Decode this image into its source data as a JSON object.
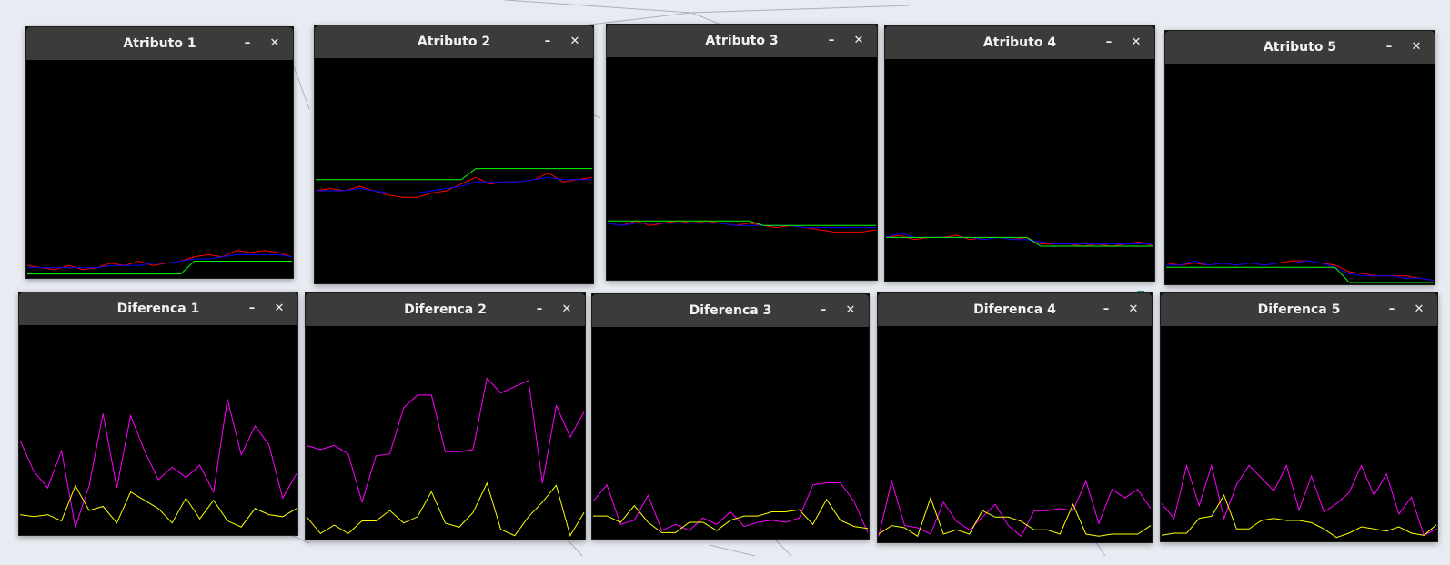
{
  "windows": [
    {
      "title": "Atributo 1",
      "minimize_label": "–",
      "close_label": "✕",
      "chart_data": {
        "type": "line",
        "x": [
          0,
          1,
          2,
          3,
          4,
          5,
          6,
          7,
          8,
          9,
          10,
          11,
          12,
          13,
          14,
          15,
          16,
          17,
          18,
          19
        ],
        "ylim": [
          0,
          1
        ],
        "series": [
          {
            "color": "#ff0000",
            "values": [
              0.05,
              0.04,
              0.03,
              0.05,
              0.03,
              0.04,
              0.06,
              0.05,
              0.07,
              0.05,
              0.06,
              0.07,
              0.09,
              0.1,
              0.09,
              0.12,
              0.11,
              0.12,
              0.11,
              0.09
            ]
          },
          {
            "color": "#0000ff",
            "values": [
              0.04,
              0.04,
              0.04,
              0.04,
              0.04,
              0.04,
              0.05,
              0.05,
              0.05,
              0.06,
              0.06,
              0.07,
              0.08,
              0.08,
              0.09,
              0.1,
              0.1,
              0.1,
              0.1,
              0.09
            ]
          },
          {
            "color": "#00ff00",
            "values": [
              0.01,
              0.01,
              0.01,
              0.01,
              0.01,
              0.01,
              0.01,
              0.01,
              0.01,
              0.01,
              0.01,
              0.01,
              0.07,
              0.07,
              0.07,
              0.07,
              0.07,
              0.07,
              0.07,
              0.07
            ]
          }
        ]
      }
    },
    {
      "title": "Atributo 2",
      "minimize_label": "–",
      "close_label": "✕",
      "chart_data": {
        "type": "line",
        "x": [
          0,
          1,
          2,
          3,
          4,
          5,
          6,
          7,
          8,
          9,
          10,
          11,
          12,
          13,
          14,
          15,
          16,
          17,
          18,
          19
        ],
        "ylim": [
          0,
          1
        ],
        "series": [
          {
            "color": "#ff0000",
            "values": [
              0.41,
              0.42,
              0.41,
              0.43,
              0.41,
              0.39,
              0.38,
              0.38,
              0.4,
              0.41,
              0.44,
              0.47,
              0.44,
              0.45,
              0.45,
              0.46,
              0.49,
              0.45,
              0.46,
              0.47
            ]
          },
          {
            "color": "#0000ff",
            "values": [
              0.41,
              0.41,
              0.41,
              0.42,
              0.41,
              0.4,
              0.4,
              0.4,
              0.41,
              0.42,
              0.43,
              0.45,
              0.45,
              0.45,
              0.45,
              0.46,
              0.47,
              0.46,
              0.46,
              0.46
            ]
          },
          {
            "color": "#00ff00",
            "values": [
              0.46,
              0.46,
              0.46,
              0.46,
              0.46,
              0.46,
              0.46,
              0.46,
              0.46,
              0.46,
              0.46,
              0.51,
              0.51,
              0.51,
              0.51,
              0.51,
              0.51,
              0.51,
              0.51,
              0.51
            ]
          }
        ]
      }
    },
    {
      "title": "Atributo 3",
      "minimize_label": "–",
      "close_label": "✕",
      "chart_data": {
        "type": "line",
        "x": [
          0,
          1,
          2,
          3,
          4,
          5,
          6,
          7,
          8,
          9,
          10,
          11,
          12,
          13,
          14,
          15,
          16,
          17,
          18,
          19
        ],
        "ylim": [
          0,
          1
        ],
        "series": [
          {
            "color": "#ff0000",
            "values": [
              0.25,
              0.24,
              0.26,
              0.24,
              0.25,
              0.26,
              0.25,
              0.26,
              0.25,
              0.24,
              0.25,
              0.24,
              0.23,
              0.24,
              0.23,
              0.22,
              0.21,
              0.21,
              0.21,
              0.22
            ]
          },
          {
            "color": "#0000ff",
            "values": [
              0.25,
              0.24,
              0.25,
              0.25,
              0.25,
              0.25,
              0.25,
              0.25,
              0.25,
              0.24,
              0.24,
              0.24,
              0.24,
              0.24,
              0.23,
              0.23,
              0.23,
              0.23,
              0.23,
              0.23
            ]
          },
          {
            "color": "#00ff00",
            "values": [
              0.26,
              0.26,
              0.26,
              0.26,
              0.26,
              0.26,
              0.26,
              0.26,
              0.26,
              0.26,
              0.26,
              0.24,
              0.24,
              0.24,
              0.24,
              0.24,
              0.24,
              0.24,
              0.24,
              0.24
            ]
          }
        ]
      }
    },
    {
      "title": "Atributo 4",
      "minimize_label": "–",
      "close_label": "✕",
      "chart_data": {
        "type": "line",
        "x": [
          0,
          1,
          2,
          3,
          4,
          5,
          6,
          7,
          8,
          9,
          10,
          11,
          12,
          13,
          14,
          15,
          16,
          17,
          18,
          19
        ],
        "ylim": [
          0,
          1
        ],
        "series": [
          {
            "color": "#ff0000",
            "values": [
              0.19,
              0.2,
              0.18,
              0.19,
              0.19,
              0.2,
              0.18,
              0.19,
              0.19,
              0.18,
              0.19,
              0.16,
              0.16,
              0.16,
              0.15,
              0.16,
              0.15,
              0.16,
              0.17,
              0.15
            ]
          },
          {
            "color": "#0000ff",
            "values": [
              0.19,
              0.21,
              0.19,
              0.19,
              0.19,
              0.19,
              0.19,
              0.18,
              0.19,
              0.18,
              0.18,
              0.17,
              0.16,
              0.16,
              0.16,
              0.16,
              0.16,
              0.16,
              0.16,
              0.16
            ]
          },
          {
            "color": "#00ff00",
            "values": [
              0.19,
              0.19,
              0.19,
              0.19,
              0.19,
              0.19,
              0.19,
              0.19,
              0.19,
              0.19,
              0.19,
              0.15,
              0.15,
              0.15,
              0.15,
              0.15,
              0.15,
              0.15,
              0.15,
              0.15
            ]
          }
        ]
      }
    },
    {
      "title": "Atributo 5",
      "minimize_label": "–",
      "close_label": "✕",
      "chart_data": {
        "type": "line",
        "x": [
          0,
          1,
          2,
          3,
          4,
          5,
          6,
          7,
          8,
          9,
          10,
          11,
          12,
          13,
          14,
          15,
          16,
          17,
          18,
          19
        ],
        "ylim": [
          0,
          1
        ],
        "series": [
          {
            "color": "#ff0000",
            "values": [
              0.09,
              0.08,
              0.09,
              0.08,
              0.09,
              0.08,
              0.09,
              0.08,
              0.09,
              0.1,
              0.1,
              0.09,
              0.08,
              0.05,
              0.04,
              0.03,
              0.03,
              0.03,
              0.02,
              0.01
            ]
          },
          {
            "color": "#0000ff",
            "values": [
              0.08,
              0.08,
              0.1,
              0.08,
              0.09,
              0.08,
              0.09,
              0.08,
              0.09,
              0.09,
              0.1,
              0.09,
              0.07,
              0.04,
              0.03,
              0.03,
              0.03,
              0.02,
              0.02,
              0.01
            ]
          },
          {
            "color": "#00ff00",
            "values": [
              0.07,
              0.07,
              0.07,
              0.07,
              0.07,
              0.07,
              0.07,
              0.07,
              0.07,
              0.07,
              0.07,
              0.07,
              0.07,
              0.0,
              0.0,
              0.0,
              0.0,
              0.0,
              0.0,
              0.0
            ]
          }
        ]
      }
    },
    {
      "title": "Diferenca 1",
      "minimize_label": "–",
      "close_label": "✕",
      "chart_data": {
        "type": "line",
        "x": [
          0,
          1,
          2,
          3,
          4,
          5,
          6,
          7,
          8,
          9,
          10,
          11,
          12,
          13,
          14,
          15,
          16,
          17,
          18,
          19,
          20
        ],
        "ylim": [
          0,
          1
        ],
        "series": [
          {
            "color": "#ff00ff",
            "values": [
              0.45,
              0.3,
              0.22,
              0.4,
              0.03,
              0.23,
              0.58,
              0.22,
              0.57,
              0.4,
              0.26,
              0.32,
              0.27,
              0.33,
              0.2,
              0.65,
              0.38,
              0.52,
              0.43,
              0.17,
              0.29
            ]
          },
          {
            "color": "#ffff00",
            "values": [
              0.09,
              0.08,
              0.09,
              0.06,
              0.23,
              0.11,
              0.13,
              0.05,
              0.2,
              0.16,
              0.12,
              0.05,
              0.17,
              0.07,
              0.16,
              0.06,
              0.03,
              0.12,
              0.09,
              0.08,
              0.12
            ]
          }
        ]
      }
    },
    {
      "title": "Diferenca 2",
      "minimize_label": "–",
      "close_label": "✕",
      "chart_data": {
        "type": "line",
        "x": [
          0,
          1,
          2,
          3,
          4,
          5,
          6,
          7,
          8,
          9,
          10,
          11,
          12,
          13,
          14,
          15,
          16,
          17,
          18,
          19,
          20
        ],
        "ylim": [
          0,
          1
        ],
        "series": [
          {
            "color": "#ff00ff",
            "values": [
              0.44,
              0.42,
              0.44,
              0.4,
              0.17,
              0.39,
              0.4,
              0.62,
              0.68,
              0.68,
              0.41,
              0.41,
              0.42,
              0.76,
              0.69,
              0.72,
              0.75,
              0.26,
              0.63,
              0.48,
              0.6
            ]
          },
          {
            "color": "#ffff00",
            "values": [
              0.1,
              0.02,
              0.06,
              0.02,
              0.08,
              0.08,
              0.13,
              0.07,
              0.1,
              0.22,
              0.07,
              0.05,
              0.12,
              0.26,
              0.04,
              0.01,
              0.1,
              0.17,
              0.25,
              0.01,
              0.12
            ]
          }
        ]
      }
    },
    {
      "title": "Diferenca 3",
      "minimize_label": "–",
      "close_label": "✕",
      "chart_data": {
        "type": "line",
        "x": [
          0,
          1,
          2,
          3,
          4,
          5,
          6,
          7,
          8,
          9,
          10,
          11,
          12,
          13,
          14,
          15,
          16,
          17,
          18,
          19,
          20
        ],
        "ylim": [
          0,
          1
        ],
        "series": [
          {
            "color": "#ff00ff",
            "values": [
              0.17,
              0.25,
              0.06,
              0.08,
              0.2,
              0.03,
              0.06,
              0.03,
              0.09,
              0.06,
              0.12,
              0.05,
              0.07,
              0.08,
              0.07,
              0.09,
              0.25,
              0.26,
              0.26,
              0.17,
              0.02
            ]
          },
          {
            "color": "#ffff00",
            "values": [
              0.1,
              0.1,
              0.07,
              0.15,
              0.07,
              0.02,
              0.02,
              0.07,
              0.07,
              0.03,
              0.08,
              0.1,
              0.1,
              0.12,
              0.12,
              0.13,
              0.06,
              0.18,
              0.08,
              0.05,
              0.04
            ]
          }
        ]
      }
    },
    {
      "title": "Diferenca 4",
      "minimize_label": "–",
      "close_label": "✕",
      "chart_data": {
        "type": "line",
        "x": [
          0,
          1,
          2,
          3,
          4,
          5,
          6,
          7,
          8,
          9,
          10,
          11,
          12,
          13,
          14,
          15,
          16,
          17,
          18,
          19,
          20,
          21
        ],
        "ylim": [
          0,
          1
        ],
        "series": [
          {
            "color": "#ff00ff",
            "values": [
              0.02,
              0.28,
              0.07,
              0.06,
              0.03,
              0.18,
              0.09,
              0.05,
              0.11,
              0.17,
              0.07,
              0.02,
              0.14,
              0.14,
              0.15,
              0.14,
              0.28,
              0.08,
              0.24,
              0.2,
              0.24,
              0.15
            ]
          },
          {
            "color": "#ffff00",
            "values": [
              0.03,
              0.07,
              0.06,
              0.02,
              0.2,
              0.03,
              0.05,
              0.03,
              0.14,
              0.11,
              0.11,
              0.09,
              0.05,
              0.05,
              0.03,
              0.17,
              0.03,
              0.02,
              0.03,
              0.03,
              0.03,
              0.07
            ]
          }
        ]
      }
    },
    {
      "title": "Diferenca 5",
      "minimize_label": "–",
      "close_label": "✕",
      "chart_data": {
        "type": "line",
        "x": [
          0,
          1,
          2,
          3,
          4,
          5,
          6,
          7,
          8,
          9,
          10,
          11,
          12,
          13,
          14,
          15,
          16,
          17,
          18,
          19,
          20,
          21,
          22
        ],
        "ylim": [
          0,
          1
        ],
        "series": [
          {
            "color": "#ff00ff",
            "values": [
              0.17,
              0.1,
              0.35,
              0.16,
              0.35,
              0.1,
              0.26,
              0.35,
              0.29,
              0.23,
              0.35,
              0.14,
              0.3,
              0.13,
              0.17,
              0.22,
              0.35,
              0.21,
              0.31,
              0.12,
              0.2,
              0.02,
              0.05
            ]
          },
          {
            "color": "#ffff00",
            "values": [
              0.02,
              0.03,
              0.03,
              0.1,
              0.11,
              0.21,
              0.05,
              0.05,
              0.09,
              0.1,
              0.09,
              0.09,
              0.08,
              0.05,
              0.01,
              0.03,
              0.06,
              0.05,
              0.04,
              0.06,
              0.03,
              0.02,
              0.07
            ]
          }
        ]
      }
    }
  ]
}
